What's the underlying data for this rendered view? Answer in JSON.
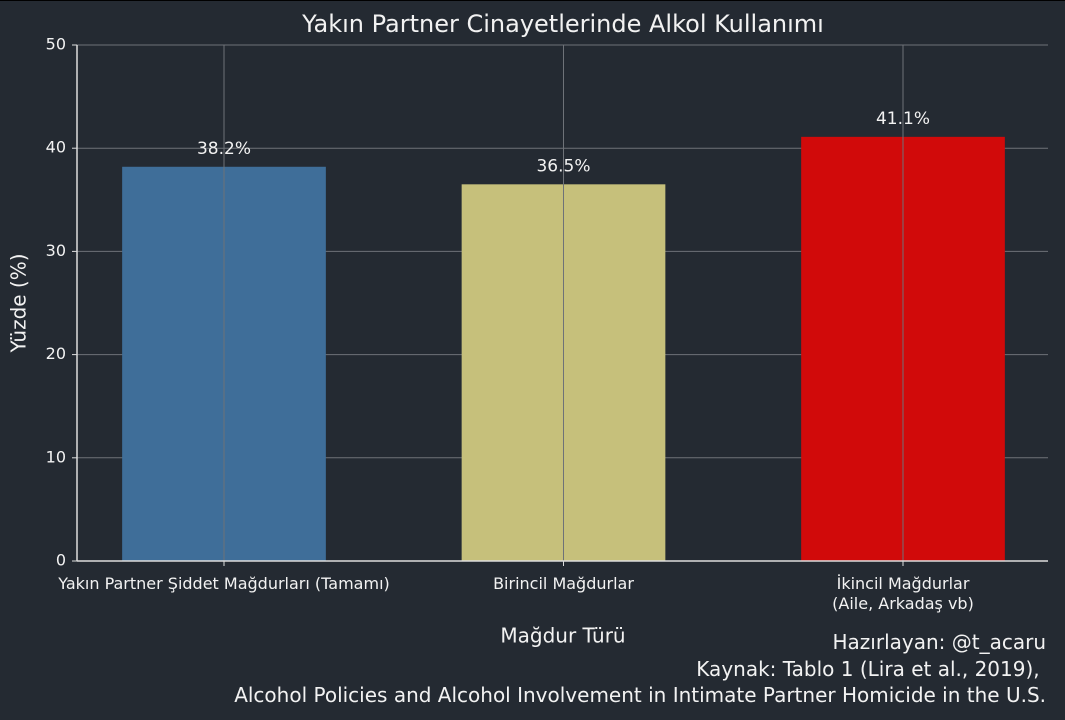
{
  "chart_data": {
    "type": "bar",
    "title": "Yakın Partner Cinayetlerinde Alkol Kullanımı",
    "x_label": "Mağdur Türü",
    "y_label": "Yüzde (%)",
    "caption": "Hazırlayan: @t_acaru\nKaynak: Tablo 1 (Lira et al., 2019), \nAlcohol Policies and Alcohol Involvement in Intimate Partner Homicide in the U.S.",
    "categories": [
      "Yakın Partner Şiddet Mağdurları (Tamamı)",
      "Birincil Mağdurlar",
      "İkincil Mağdurlar\n(Aile, Arkadaş vb)"
    ],
    "values": [
      38.2,
      36.5,
      41.1
    ],
    "value_labels": [
      "38.2%",
      "36.5%",
      "41.1%"
    ],
    "colors": [
      "#3f6e99",
      "#c6c07b",
      "#d10a0a"
    ],
    "ylim": [
      0,
      50
    ],
    "yticks": [
      0,
      10,
      20,
      30,
      40,
      50
    ],
    "grid": true
  }
}
